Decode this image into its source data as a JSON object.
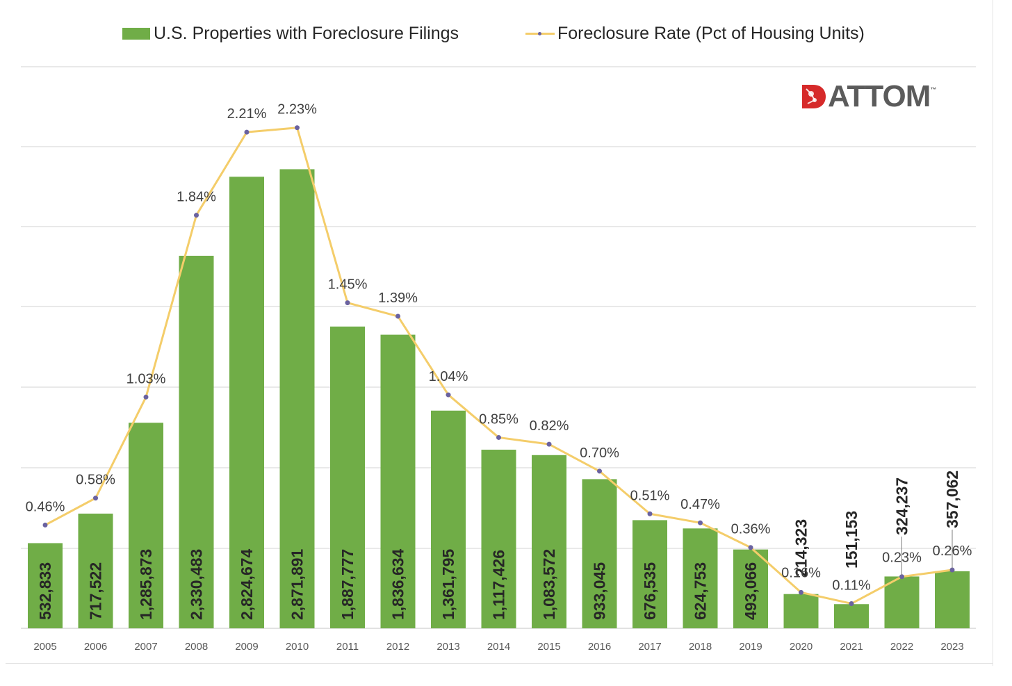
{
  "legend": {
    "bars_label": "U.S. Properties with Foreclosure Filings",
    "line_label": "Foreclosure Rate (Pct of Housing Units)"
  },
  "logo": {
    "text": "ATTOM",
    "tm": "™"
  },
  "colors": {
    "bar": "#70ad47",
    "line": "#f4cd6a",
    "marker": "#6a62a0",
    "gridline": "#e2e2e2",
    "axis_text": "#595959",
    "bar_label": "#262626",
    "rate_label": "#404040",
    "logo_red": "#d62a2a",
    "logo_gray": "#5b5b5b"
  },
  "chart_data": {
    "type": "bar",
    "categories": [
      "2005",
      "2006",
      "2007",
      "2008",
      "2009",
      "2010",
      "2011",
      "2012",
      "2013",
      "2014",
      "2015",
      "2016",
      "2017",
      "2018",
      "2019",
      "2020",
      "2021",
      "2022",
      "2023"
    ],
    "series": [
      {
        "name": "U.S. Properties with Foreclosure Filings",
        "type": "bar",
        "values": [
          532833,
          717522,
          1285873,
          2330483,
          2824674,
          2871891,
          1887777,
          1836634,
          1361795,
          1117426,
          1083572,
          933045,
          676535,
          624753,
          493066,
          214323,
          151153,
          324237,
          357062
        ],
        "labels": [
          "532,833",
          "717,522",
          "1,285,873",
          "2,330,483",
          "2,824,674",
          "2,871,891",
          "1,887,777",
          "1,836,634",
          "1,361,795",
          "1,117,426",
          "1,083,572",
          "933,045",
          "676,535",
          "624,753",
          "493,066",
          "214,323",
          "151,153",
          "324,237",
          "357,062"
        ]
      },
      {
        "name": "Foreclosure Rate (Pct of Housing Units)",
        "type": "line",
        "values": [
          0.46,
          0.58,
          1.03,
          1.84,
          2.21,
          2.23,
          1.45,
          1.39,
          1.04,
          0.85,
          0.82,
          0.7,
          0.51,
          0.47,
          0.36,
          0.16,
          0.11,
          0.23,
          0.26
        ],
        "labels": [
          "0.46%",
          "0.58%",
          "1.03%",
          "1.84%",
          "2.21%",
          "2.23%",
          "1.45%",
          "1.39%",
          "1.04%",
          "0.85%",
          "0.82%",
          "0.70%",
          "0.51%",
          "0.47%",
          "0.36%",
          "0.16%",
          "0.11%",
          "0.23%",
          "0.26%"
        ]
      }
    ],
    "ylim_bars": [
      0,
      3500000
    ],
    "ylim_rate": [
      0,
      2.75
    ],
    "gridlines": true,
    "legend_position": "top"
  }
}
